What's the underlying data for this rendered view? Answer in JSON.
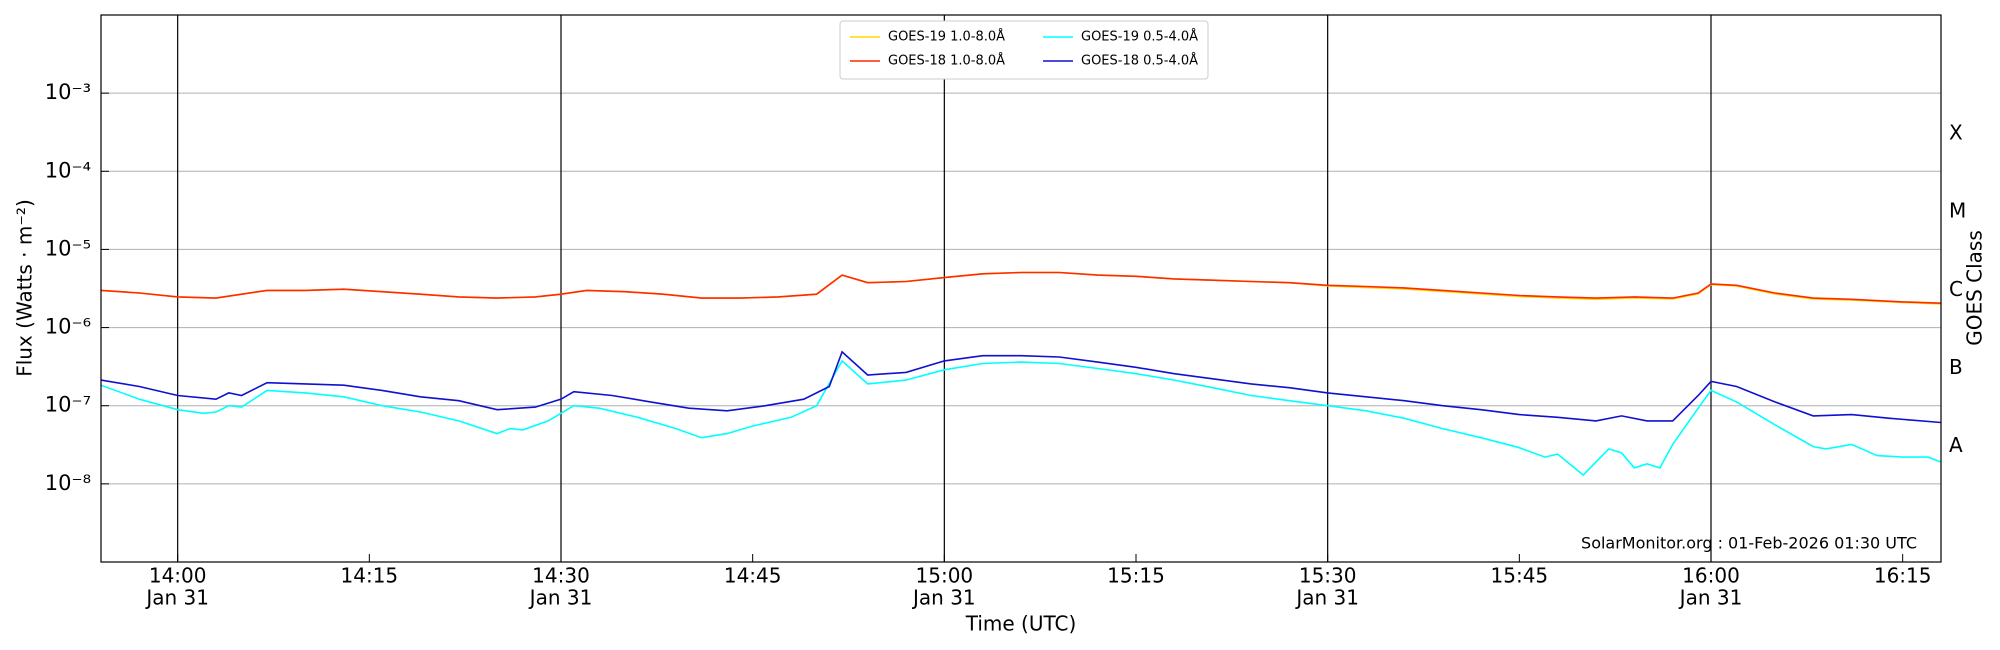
{
  "chart_data": {
    "type": "line",
    "log_y": true,
    "grid": true,
    "ylabel": "Flux (Watts · m⁻²)",
    "xlabel": "Time (UTC)",
    "y2label": "GOES Class",
    "annotation": "SolarMonitor.org : 01-Feb-2026 01:30 UTC",
    "legend": "upper center",
    "xlim": [
      "13:54",
      "16:18"
    ],
    "xticks": [
      {
        "value": "14:00",
        "label": "14:00",
        "date": "Jan 31"
      },
      "14:15",
      {
        "value": "14:30",
        "label": "14:30",
        "date": "Jan 31"
      },
      "14:45",
      {
        "value": "15:00",
        "label": "15:00",
        "date": "Jan 31"
      },
      "15:15",
      {
        "value": "15:30",
        "label": "15:30",
        "date": "Jan 31"
      },
      "15:45",
      {
        "value": "16:00",
        "label": "16:00",
        "date": "Jan 31"
      },
      "16:15"
    ],
    "ylim": [
      1e-09,
      0.01
    ],
    "yticks": [
      {
        "value": 1e-08,
        "label": "10⁻⁸"
      },
      {
        "value": 1e-07,
        "label": "10⁻⁷"
      },
      {
        "value": 1e-06,
        "label": "10⁻⁶"
      },
      {
        "value": 1e-05,
        "label": "10⁻⁵"
      },
      {
        "value": 0.0001,
        "label": "10⁻⁴"
      },
      {
        "value": 0.001,
        "label": "10⁻³"
      }
    ],
    "y2lim": [
      1e-09,
      0.01
    ],
    "y2ticks": [
      {
        "value": 3e-08,
        "label": "A"
      },
      {
        "value": 3e-07,
        "label": "B"
      },
      {
        "value": 3e-06,
        "label": "C"
      },
      {
        "value": 3e-05,
        "label": "M"
      },
      {
        "value": 0.0003,
        "label": "X"
      }
    ],
    "series": [
      {
        "name": "GOES-19 1.0-8.0Å",
        "color": "#ffd700",
        "x": [
          "13:54",
          "13:57",
          "14:00",
          "14:03",
          "14:05",
          "14:07",
          "14:10",
          "14:13",
          "14:16",
          "14:19",
          "14:22",
          "14:25",
          "14:28",
          "14:30",
          "14:32",
          "14:35",
          "14:38",
          "14:41",
          "14:44",
          "14:47",
          "14:50",
          "14:52",
          "14:54",
          "14:57",
          "15:00",
          "15:03",
          "15:06",
          "15:09",
          "15:12",
          "15:15",
          "15:18",
          "15:21",
          "15:24",
          "15:27",
          "15:30",
          "15:33",
          "15:36",
          "15:39",
          "15:42",
          "15:45",
          "15:48",
          "15:51",
          "15:54",
          "15:57",
          "15:59",
          "16:00",
          "16:02",
          "16:05",
          "16:08",
          "16:11",
          "16:15",
          "16:18"
        ],
        "values": [
          2.99e-06,
          2.77e-06,
          2.47e-06,
          2.38e-06,
          2.67e-06,
          2.99e-06,
          2.99e-06,
          3.1e-06,
          2.88e-06,
          2.67e-06,
          2.47e-06,
          2.38e-06,
          2.47e-06,
          2.67e-06,
          2.99e-06,
          2.88e-06,
          2.67e-06,
          2.38e-06,
          2.38e-06,
          2.47e-06,
          2.67e-06,
          4.7e-06,
          3.75e-06,
          3.89e-06,
          4.36e-06,
          4.88e-06,
          5.07e-06,
          5.07e-06,
          4.7e-06,
          4.53e-06,
          4.2e-06,
          4.04e-06,
          3.89e-06,
          3.75e-06,
          3.4e-06,
          3.27e-06,
          3.12e-06,
          2.9e-06,
          2.7e-06,
          2.5e-06,
          2.4e-06,
          2.3e-06,
          2.4e-06,
          2.32e-06,
          2.7e-06,
          3.55e-06,
          3.4e-06,
          2.7e-06,
          2.33e-06,
          2.25e-06,
          2.1e-06,
          2e-06
        ]
      },
      {
        "name": "GOES-18 1.0-8.0Å",
        "color": "#ff2a00",
        "x": [
          "13:54",
          "13:57",
          "14:00",
          "14:03",
          "14:05",
          "14:07",
          "14:10",
          "14:13",
          "14:16",
          "14:19",
          "14:22",
          "14:25",
          "14:28",
          "14:30",
          "14:32",
          "14:35",
          "14:38",
          "14:41",
          "14:44",
          "14:47",
          "14:50",
          "14:52",
          "14:54",
          "14:57",
          "15:00",
          "15:03",
          "15:06",
          "15:09",
          "15:12",
          "15:15",
          "15:18",
          "15:21",
          "15:24",
          "15:27",
          "15:30",
          "15:33",
          "15:36",
          "15:39",
          "15:42",
          "15:45",
          "15:48",
          "15:51",
          "15:54",
          "15:57",
          "15:59",
          "16:00",
          "16:02",
          "16:05",
          "16:08",
          "16:11",
          "16:15",
          "16:18"
        ],
        "values": [
          2.99e-06,
          2.77e-06,
          2.47e-06,
          2.38e-06,
          2.67e-06,
          2.99e-06,
          2.99e-06,
          3.1e-06,
          2.88e-06,
          2.67e-06,
          2.47e-06,
          2.38e-06,
          2.47e-06,
          2.67e-06,
          2.99e-06,
          2.88e-06,
          2.67e-06,
          2.38e-06,
          2.38e-06,
          2.47e-06,
          2.67e-06,
          4.7e-06,
          3.75e-06,
          3.89e-06,
          4.36e-06,
          4.88e-06,
          5.07e-06,
          5.07e-06,
          4.7e-06,
          4.53e-06,
          4.2e-06,
          4.04e-06,
          3.89e-06,
          3.75e-06,
          3.47e-06,
          3.35e-06,
          3.22e-06,
          2.99e-06,
          2.77e-06,
          2.57e-06,
          2.47e-06,
          2.38e-06,
          2.47e-06,
          2.38e-06,
          2.77e-06,
          3.61e-06,
          3.47e-06,
          2.77e-06,
          2.38e-06,
          2.3e-06,
          2.13e-06,
          2.05e-06
        ]
      },
      {
        "name": "GOES-19 0.5-4.0Å",
        "color": "#00ffff",
        "x": [
          "13:54",
          "13:57",
          "14:00",
          "14:02",
          "14:03",
          "14:04",
          "14:05",
          "14:07",
          "14:10",
          "14:13",
          "14:16",
          "14:19",
          "14:22",
          "14:25",
          "14:26",
          "14:27",
          "14:29",
          "14:31",
          "14:33",
          "14:36",
          "14:39",
          "14:41",
          "14:43",
          "14:45",
          "14:48",
          "14:50",
          "14:52",
          "14:54",
          "14:57",
          "15:00",
          "15:03",
          "15:06",
          "15:09",
          "15:12",
          "15:15",
          "15:18",
          "15:21",
          "15:24",
          "15:27",
          "15:30",
          "15:33",
          "15:36",
          "15:39",
          "15:42",
          "15:45",
          "15:47",
          "15:48",
          "15:50",
          "15:52",
          "15:53",
          "15:54",
          "15:55",
          "15:56",
          "15:57",
          "15:59",
          "16:00",
          "16:02",
          "16:05",
          "16:08",
          "16:09",
          "16:11",
          "16:13",
          "16:15",
          "16:17",
          "16:18"
        ],
        "values": [
          1.83e-07,
          1.21e-07,
          8.9e-08,
          8e-08,
          8.3e-08,
          1e-07,
          9.6e-08,
          1.57e-07,
          1.46e-07,
          1.3e-07,
          1e-07,
          8.3e-08,
          6.4e-08,
          4.4e-08,
          5.1e-08,
          4.9e-08,
          6.4e-08,
          1e-07,
          9.3e-08,
          7.1e-08,
          5.1e-08,
          3.9e-08,
          4.4e-08,
          5.5e-08,
          7.1e-08,
          1e-07,
          3.75e-07,
          1.9e-07,
          2.13e-07,
          2.88e-07,
          3.47e-07,
          3.61e-07,
          3.47e-07,
          2.99e-07,
          2.57e-07,
          2.13e-07,
          1.7e-07,
          1.35e-07,
          1.16e-07,
          1e-07,
          8.6e-08,
          6.9e-08,
          5.1e-08,
          3.9e-08,
          2.9e-08,
          2.2e-08,
          2.4e-08,
          1.3e-08,
          2.8e-08,
          2.5e-08,
          1.6e-08,
          1.8e-08,
          1.6e-08,
          3.2e-08,
          9.3e-08,
          1.57e-07,
          1.12e-07,
          5.7e-08,
          3e-08,
          2.8e-08,
          3.2e-08,
          2.3e-08,
          2.2e-08,
          2.2e-08,
          1.9e-08
        ]
      },
      {
        "name": "GOES-18 0.5-4.0Å",
        "color": "#1010d0",
        "x": [
          "13:54",
          "13:57",
          "14:00",
          "14:03",
          "14:04",
          "14:05",
          "14:07",
          "14:10",
          "14:13",
          "14:16",
          "14:19",
          "14:22",
          "14:25",
          "14:28",
          "14:30",
          "14:31",
          "14:34",
          "14:37",
          "14:40",
          "14:43",
          "14:46",
          "14:49",
          "14:51",
          "14:52",
          "14:54",
          "14:57",
          "15:00",
          "15:03",
          "15:06",
          "15:09",
          "15:12",
          "15:15",
          "15:18",
          "15:21",
          "15:24",
          "15:27",
          "15:30",
          "15:33",
          "15:36",
          "15:39",
          "15:42",
          "15:45",
          "15:48",
          "15:51",
          "15:53",
          "15:55",
          "15:57",
          "15:59",
          "16:00",
          "16:02",
          "16:05",
          "16:08",
          "16:11",
          "16:14",
          "16:18"
        ],
        "values": [
          2.13e-07,
          1.76e-07,
          1.35e-07,
          1.21e-07,
          1.46e-07,
          1.35e-07,
          1.97e-07,
          1.9e-07,
          1.83e-07,
          1.57e-07,
          1.3e-07,
          1.16e-07,
          8.9e-08,
          9.6e-08,
          1.21e-07,
          1.51e-07,
          1.35e-07,
          1.12e-07,
          9.3e-08,
          8.6e-08,
          1e-07,
          1.21e-07,
          1.76e-07,
          4.88e-07,
          2.47e-07,
          2.67e-07,
          3.75e-07,
          4.36e-07,
          4.36e-07,
          4.2e-07,
          3.61e-07,
          3.1e-07,
          2.57e-07,
          2.21e-07,
          1.9e-07,
          1.7e-07,
          1.46e-07,
          1.3e-07,
          1.16e-07,
          1e-07,
          8.9e-08,
          7.7e-08,
          7.1e-08,
          6.4e-08,
          7.4e-08,
          6.4e-08,
          6.4e-08,
          1.35e-07,
          2.05e-07,
          1.76e-07,
          1.12e-07,
          7.4e-08,
          7.7e-08,
          6.9e-08,
          6.1e-08
        ]
      }
    ]
  }
}
